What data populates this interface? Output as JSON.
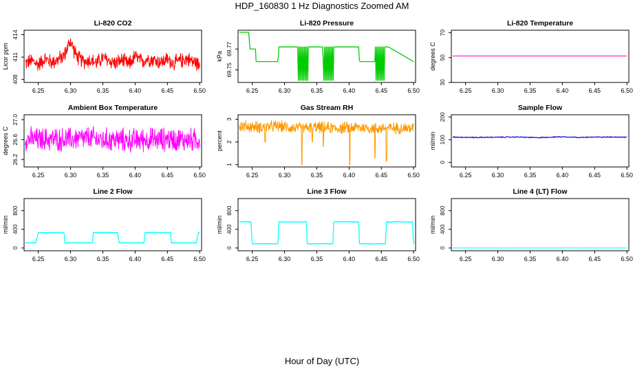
{
  "page": {
    "title": "HDP_160830  1 Hz Diagnostics Zoomed AM",
    "xlabel": "Hour of Day (UTC)"
  },
  "chart_data": [
    {
      "id": "p1",
      "type": "line",
      "title": "Li-820 CO2",
      "ylabel": "Licor ppm",
      "color": "#ff0000",
      "ylim": [
        407.6,
        414.6
      ],
      "yticks": [
        408,
        411,
        414
      ],
      "xlim": [
        6.228,
        6.503
      ],
      "xticks": [
        6.25,
        6.3,
        6.35,
        6.4,
        6.45,
        6.5
      ],
      "x": [
        6.23,
        6.24,
        6.25,
        6.26,
        6.27,
        6.28,
        6.29,
        6.295,
        6.3,
        6.305,
        6.31,
        6.32,
        6.33,
        6.34,
        6.35,
        6.36,
        6.37,
        6.38,
        6.39,
        6.4,
        6.41,
        6.42,
        6.43,
        6.44,
        6.45,
        6.46,
        6.47,
        6.48,
        6.49,
        6.5
      ],
      "values": [
        410.2,
        410.5,
        410.0,
        410.8,
        410.3,
        410.6,
        411.2,
        412.2,
        413.2,
        412.0,
        411.0,
        410.4,
        410.6,
        410.2,
        410.9,
        410.5,
        410.2,
        410.6,
        410.0,
        411.1,
        410.4,
        410.8,
        410.6,
        410.3,
        410.7,
        410.2,
        410.5,
        410.8,
        410.4,
        410.0
      ],
      "noise": 1.2
    },
    {
      "id": "p2",
      "type": "line",
      "title": "Li-820 Pressure",
      "ylabel": "kPa",
      "color": "#00cc00",
      "ylim": [
        69.738,
        69.788
      ],
      "yticks": [
        69.75,
        69.77
      ],
      "xlim": [
        6.228,
        6.503
      ],
      "xticks": [
        6.25,
        6.3,
        6.35,
        6.4,
        6.45,
        6.5
      ],
      "x": [
        6.23,
        6.245,
        6.246,
        6.255,
        6.256,
        6.29,
        6.291,
        6.32,
        6.321,
        6.335,
        6.336,
        6.359,
        6.36,
        6.37,
        6.371,
        6.375,
        6.376,
        6.415,
        6.416,
        6.418,
        6.419,
        6.44,
        6.441,
        6.455,
        6.456,
        6.46,
        6.461,
        6.5
      ],
      "values": [
        69.786,
        69.786,
        69.77,
        69.77,
        69.758,
        69.758,
        69.772,
        69.772,
        69.772,
        69.772,
        69.772,
        69.772,
        69.758,
        69.758,
        69.758,
        69.758,
        69.772,
        69.772,
        69.758,
        69.758,
        69.758,
        69.758,
        69.758,
        69.758,
        69.772,
        69.772,
        69.772,
        69.758
      ],
      "noise": 0
    },
    {
      "id": "p3",
      "type": "line",
      "title": "Li-820 Temperature",
      "ylabel": "degrees C",
      "color": "#ff00cc",
      "ylim": [
        30,
        72
      ],
      "yticks": [
        30,
        50,
        70
      ],
      "xlim": [
        6.228,
        6.503
      ],
      "xticks": [
        6.25,
        6.3,
        6.35,
        6.4,
        6.45,
        6.5
      ],
      "x": [
        6.23,
        6.5
      ],
      "values": [
        51.3,
        51.3
      ],
      "noise": 0
    },
    {
      "id": "p4",
      "type": "line",
      "title": "Ambient Box Temperature",
      "ylabel": "degrees C",
      "color": "#ff00ff",
      "ylim": [
        26.05,
        27.1
      ],
      "yticks": [
        26.2,
        26.6,
        27.0
      ],
      "xlim": [
        6.228,
        6.503
      ],
      "xticks": [
        6.25,
        6.3,
        6.35,
        6.4,
        6.45,
        6.5
      ],
      "x": [
        6.23,
        6.25,
        6.27,
        6.29,
        6.31,
        6.33,
        6.35,
        6.37,
        6.39,
        6.41,
        6.43,
        6.45,
        6.47,
        6.49,
        6.5
      ],
      "values": [
        26.62,
        26.6,
        26.61,
        26.6,
        26.62,
        26.63,
        26.59,
        26.6,
        26.58,
        26.6,
        26.6,
        26.61,
        26.6,
        26.59,
        26.6
      ],
      "noise": 0.28
    },
    {
      "id": "p5",
      "type": "line",
      "title": "Gas Stream RH",
      "ylabel": "percent",
      "color": "#ff9900",
      "ylim": [
        0.9,
        3.2
      ],
      "yticks": [
        1.0,
        2.0,
        3.0
      ],
      "xlim": [
        6.228,
        6.503
      ],
      "xticks": [
        6.25,
        6.3,
        6.35,
        6.4,
        6.45,
        6.5
      ],
      "x": [
        6.23,
        6.26,
        6.29,
        6.32,
        6.35,
        6.38,
        6.41,
        6.44,
        6.47,
        6.5
      ],
      "values": [
        2.7,
        2.65,
        2.7,
        2.6,
        2.65,
        2.6,
        2.65,
        2.6,
        2.62,
        2.6
      ],
      "noise": 0.3,
      "spikes": [
        [
          6.327,
          1.0
        ],
        [
          6.401,
          1.0
        ],
        [
          6.458,
          1.15
        ],
        [
          6.44,
          1.3
        ],
        [
          6.343,
          2.0
        ],
        [
          6.36,
          1.8
        ],
        [
          6.27,
          2.0
        ]
      ]
    },
    {
      "id": "p6",
      "type": "line",
      "title": "Sample Flow",
      "ylabel": "ml/min",
      "color": "#0000cc",
      "ylim": [
        -20,
        210
      ],
      "yticks": [
        0,
        100,
        200
      ],
      "xlim": [
        6.228,
        6.503
      ],
      "xticks": [
        6.25,
        6.3,
        6.35,
        6.4,
        6.45,
        6.5
      ],
      "x": [
        6.23,
        6.26,
        6.3,
        6.33,
        6.36,
        6.4,
        6.43,
        6.46,
        6.5
      ],
      "values": [
        112,
        110,
        111,
        112,
        109,
        113,
        110,
        112,
        111
      ],
      "noise": 3
    },
    {
      "id": "p7",
      "type": "line",
      "title": "Line 2 Flow",
      "ylabel": "ml/min",
      "color": "#00ffff",
      "ylim": [
        -60,
        1060
      ],
      "yticks": [
        0,
        400,
        800
      ],
      "xlim": [
        6.228,
        6.503
      ],
      "xticks": [
        6.25,
        6.3,
        6.35,
        6.4,
        6.45,
        6.5
      ],
      "x": [
        6.23,
        6.246,
        6.25,
        6.29,
        6.291,
        6.334,
        6.335,
        6.373,
        6.375,
        6.414,
        6.415,
        6.455,
        6.456,
        6.495,
        6.498,
        6.5
      ],
      "values": [
        110,
        110,
        330,
        330,
        110,
        110,
        330,
        330,
        110,
        110,
        330,
        330,
        110,
        110,
        330,
        330
      ],
      "noise": 8
    },
    {
      "id": "p8",
      "type": "line",
      "title": "Line 3 Flow",
      "ylabel": "ml/min",
      "color": "#00ffff",
      "ylim": [
        -60,
        1060
      ],
      "yticks": [
        0,
        400,
        800
      ],
      "xlim": [
        6.228,
        6.503
      ],
      "xticks": [
        6.25,
        6.3,
        6.35,
        6.4,
        6.45,
        6.5
      ],
      "x": [
        6.23,
        6.248,
        6.25,
        6.29,
        6.291,
        6.334,
        6.335,
        6.375,
        6.376,
        6.415,
        6.416,
        6.456,
        6.458,
        6.498,
        6.5
      ],
      "values": [
        560,
        560,
        90,
        90,
        560,
        560,
        90,
        90,
        560,
        560,
        90,
        90,
        560,
        560,
        90
      ],
      "noise": 8
    },
    {
      "id": "p9",
      "type": "line",
      "title": "Line 4 (LT) Flow",
      "ylabel": "ml/min",
      "color": "#00ffff",
      "ylim": [
        -60,
        1060
      ],
      "yticks": [
        0,
        400,
        800
      ],
      "xlim": [
        6.228,
        6.503
      ],
      "xticks": [
        6.25,
        6.3,
        6.35,
        6.4,
        6.45,
        6.5
      ],
      "x": [
        6.23,
        6.5
      ],
      "values": [
        0,
        0
      ],
      "noise": 2
    }
  ]
}
